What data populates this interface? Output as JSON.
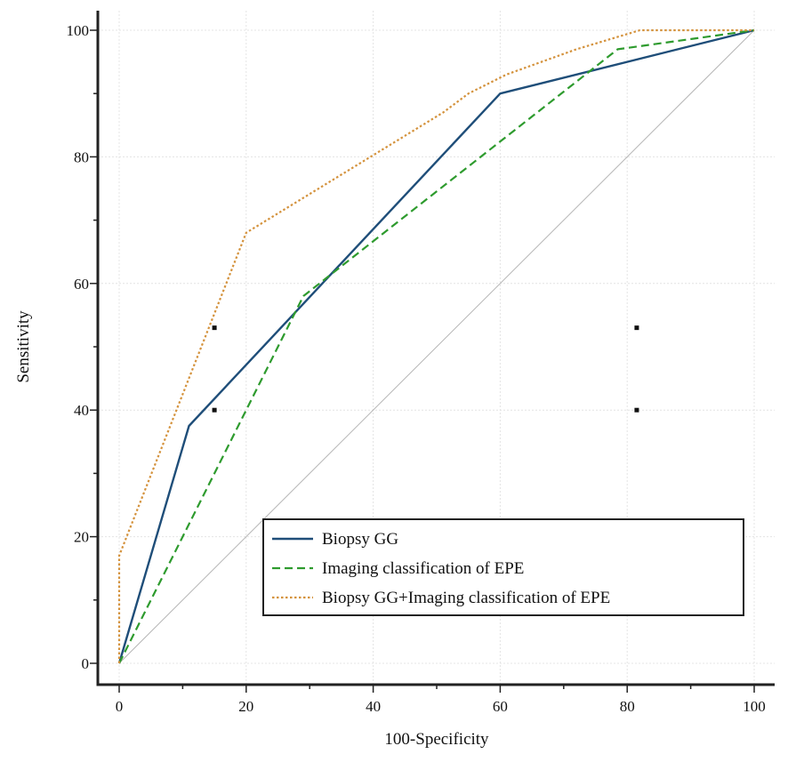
{
  "chart_data": {
    "type": "line",
    "title": "",
    "xlabel": "100-Specificity",
    "ylabel": "Sensitivity",
    "xlim": [
      0,
      100
    ],
    "ylim": [
      0,
      100
    ],
    "xticks": [
      0,
      20,
      40,
      60,
      80,
      100
    ],
    "yticks": [
      0,
      20,
      40,
      60,
      80,
      100
    ],
    "grid": true,
    "legend_position": "bottom-right",
    "series": [
      {
        "name": "Biopsy GG",
        "style": "solid",
        "color": "#1f4e79",
        "x": [
          0,
          11,
          60,
          100
        ],
        "y": [
          0,
          37.5,
          90,
          100
        ]
      },
      {
        "name": "Imaging classification of EPE",
        "style": "dashed",
        "color": "#2e9b2e",
        "x": [
          0,
          29,
          78.5,
          100
        ],
        "y": [
          0,
          58,
          97,
          100
        ]
      },
      {
        "name": "Biopsy GG+Imaging classification of EPE",
        "style": "dotted",
        "color": "#d4923c",
        "x": [
          0,
          0,
          20,
          51,
          55,
          61,
          72,
          82,
          100
        ],
        "y": [
          0,
          17,
          68,
          87,
          90,
          93,
          97,
          100,
          100
        ]
      }
    ],
    "reference_line": {
      "x": [
        0,
        100
      ],
      "y": [
        0,
        100
      ],
      "color": "#b5b5b5"
    },
    "markers": [
      {
        "x": 15,
        "y": 53
      },
      {
        "x": 15,
        "y": 40
      },
      {
        "x": 81.5,
        "y": 53
      },
      {
        "x": 81.5,
        "y": 40
      }
    ]
  }
}
